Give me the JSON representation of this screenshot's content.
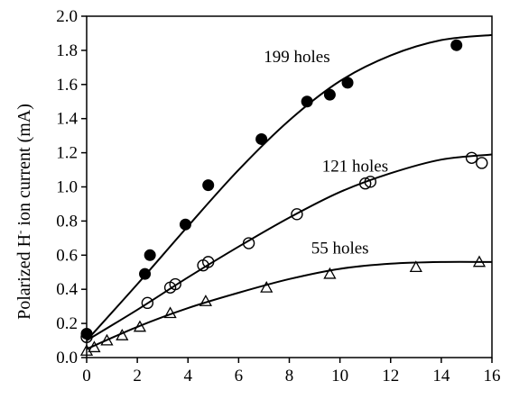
{
  "chart_data": {
    "type": "scatter",
    "ylabel": "Polarized H",
    "ylabel_sup": "-",
    "ylabel_rest": " ion current (mA)",
    "xlabel": "",
    "xlim": [
      0,
      16
    ],
    "ylim": [
      0,
      2.0
    ],
    "x_ticks": [
      0,
      2,
      4,
      6,
      8,
      10,
      12,
      14,
      16
    ],
    "y_ticks": [
      0.0,
      0.2,
      0.4,
      0.6,
      0.8,
      1.0,
      1.2,
      1.4,
      1.6,
      1.8,
      2.0
    ],
    "x_tick_labels": [
      "0",
      "2",
      "4",
      "6",
      "8",
      "10",
      "12",
      "14",
      "16"
    ],
    "y_tick_labels": [
      "0.0",
      "0.2",
      "0.4",
      "0.6",
      "0.8",
      "1.0",
      "1.2",
      "1.4",
      "1.6",
      "1.8",
      "2.0"
    ],
    "grid": false,
    "series": [
      {
        "name": "199 holes",
        "marker": "filled-circle",
        "label_pos": [
          8.3,
          1.73
        ],
        "points": [
          [
            0.0,
            0.14
          ],
          [
            2.3,
            0.49
          ],
          [
            2.5,
            0.6
          ],
          [
            3.9,
            0.78
          ],
          [
            4.8,
            1.01
          ],
          [
            6.9,
            1.28
          ],
          [
            8.7,
            1.5
          ],
          [
            9.6,
            1.54
          ],
          [
            10.3,
            1.61
          ],
          [
            14.6,
            1.83
          ]
        ],
        "fit": [
          [
            0.0,
            0.1
          ],
          [
            2.0,
            0.43
          ],
          [
            4.0,
            0.77
          ],
          [
            6.0,
            1.1
          ],
          [
            8.0,
            1.39
          ],
          [
            10.0,
            1.62
          ],
          [
            12.0,
            1.77
          ],
          [
            14.0,
            1.86
          ],
          [
            16.0,
            1.89
          ]
        ]
      },
      {
        "name": "121 holes",
        "marker": "open-circle",
        "label_pos": [
          10.6,
          1.09
        ],
        "points": [
          [
            0.0,
            0.12
          ],
          [
            2.4,
            0.32
          ],
          [
            3.3,
            0.41
          ],
          [
            3.5,
            0.43
          ],
          [
            4.6,
            0.54
          ],
          [
            4.8,
            0.56
          ],
          [
            6.4,
            0.67
          ],
          [
            8.3,
            0.84
          ],
          [
            11.0,
            1.02
          ],
          [
            11.2,
            1.03
          ],
          [
            15.2,
            1.17
          ],
          [
            15.6,
            1.14
          ]
        ],
        "fit": [
          [
            0.0,
            0.1
          ],
          [
            2.0,
            0.28
          ],
          [
            4.0,
            0.47
          ],
          [
            6.0,
            0.65
          ],
          [
            8.0,
            0.82
          ],
          [
            10.0,
            0.97
          ],
          [
            12.0,
            1.08
          ],
          [
            14.0,
            1.16
          ],
          [
            16.0,
            1.19
          ]
        ]
      },
      {
        "name": "55 holes",
        "marker": "open-triangle",
        "label_pos": [
          10.0,
          0.61
        ],
        "points": [
          [
            0.0,
            0.04
          ],
          [
            0.3,
            0.06
          ],
          [
            0.8,
            0.1
          ],
          [
            1.4,
            0.13
          ],
          [
            2.1,
            0.18
          ],
          [
            3.3,
            0.26
          ],
          [
            4.7,
            0.33
          ],
          [
            7.1,
            0.41
          ],
          [
            9.6,
            0.49
          ],
          [
            13.0,
            0.53
          ],
          [
            15.5,
            0.56
          ]
        ],
        "fit": [
          [
            0.0,
            0.05
          ],
          [
            2.0,
            0.18
          ],
          [
            4.0,
            0.29
          ],
          [
            6.0,
            0.38
          ],
          [
            8.0,
            0.46
          ],
          [
            10.0,
            0.52
          ],
          [
            12.0,
            0.55
          ],
          [
            14.0,
            0.56
          ],
          [
            16.0,
            0.56
          ]
        ]
      }
    ]
  }
}
